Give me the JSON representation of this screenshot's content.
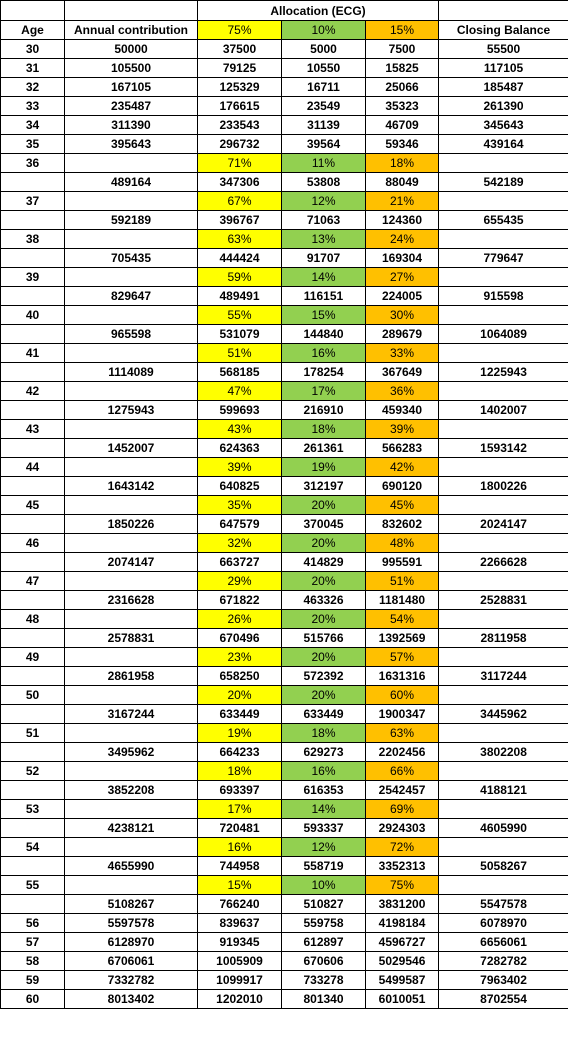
{
  "header": {
    "allocation_title": "Allocation (ECG)",
    "age": "Age",
    "annual_contribution": "Annual contribution",
    "alloc_a": "75%",
    "alloc_b": "10%",
    "alloc_c": "15%",
    "closing_balance": "Closing Balance"
  },
  "colors": {
    "alloc_a": "#ffff00",
    "alloc_b": "#92d050",
    "alloc_c": "#ffc000"
  },
  "rows": [
    {
      "kind": "data",
      "age": "30",
      "contribution": "50000",
      "a": "37500",
      "b": "5000",
      "c": "7500",
      "closing": "55500"
    },
    {
      "kind": "data",
      "age": "31",
      "contribution": "105500",
      "a": "79125",
      "b": "10550",
      "c": "15825",
      "closing": "117105"
    },
    {
      "kind": "data",
      "age": "32",
      "contribution": "167105",
      "a": "125329",
      "b": "16711",
      "c": "25066",
      "closing": "185487"
    },
    {
      "kind": "data",
      "age": "33",
      "contribution": "235487",
      "a": "176615",
      "b": "23549",
      "c": "35323",
      "closing": "261390"
    },
    {
      "kind": "data",
      "age": "34",
      "contribution": "311390",
      "a": "233543",
      "b": "31139",
      "c": "46709",
      "closing": "345643"
    },
    {
      "kind": "data",
      "age": "35",
      "contribution": "395643",
      "a": "296732",
      "b": "39564",
      "c": "59346",
      "closing": "439164"
    },
    {
      "kind": "pct",
      "age": "36",
      "a": "71%",
      "b": "11%",
      "c": "18%"
    },
    {
      "kind": "data",
      "age": "",
      "contribution": "489164",
      "a": "347306",
      "b": "53808",
      "c": "88049",
      "closing": "542189"
    },
    {
      "kind": "pct",
      "age": "37",
      "a": "67%",
      "b": "12%",
      "c": "21%"
    },
    {
      "kind": "data",
      "age": "",
      "contribution": "592189",
      "a": "396767",
      "b": "71063",
      "c": "124360",
      "closing": "655435"
    },
    {
      "kind": "pct",
      "age": "38",
      "a": "63%",
      "b": "13%",
      "c": "24%"
    },
    {
      "kind": "data",
      "age": "",
      "contribution": "705435",
      "a": "444424",
      "b": "91707",
      "c": "169304",
      "closing": "779647"
    },
    {
      "kind": "pct",
      "age": "39",
      "a": "59%",
      "b": "14%",
      "c": "27%"
    },
    {
      "kind": "data",
      "age": "",
      "contribution": "829647",
      "a": "489491",
      "b": "116151",
      "c": "224005",
      "closing": "915598"
    },
    {
      "kind": "pct",
      "age": "40",
      "a": "55%",
      "b": "15%",
      "c": "30%"
    },
    {
      "kind": "data",
      "age": "",
      "contribution": "965598",
      "a": "531079",
      "b": "144840",
      "c": "289679",
      "closing": "1064089"
    },
    {
      "kind": "pct",
      "age": "41",
      "a": "51%",
      "b": "16%",
      "c": "33%"
    },
    {
      "kind": "data",
      "age": "",
      "contribution": "1114089",
      "a": "568185",
      "b": "178254",
      "c": "367649",
      "closing": "1225943"
    },
    {
      "kind": "pct",
      "age": "42",
      "a": "47%",
      "b": "17%",
      "c": "36%"
    },
    {
      "kind": "data",
      "age": "",
      "contribution": "1275943",
      "a": "599693",
      "b": "216910",
      "c": "459340",
      "closing": "1402007"
    },
    {
      "kind": "pct",
      "age": "43",
      "a": "43%",
      "b": "18%",
      "c": "39%"
    },
    {
      "kind": "data",
      "age": "",
      "contribution": "1452007",
      "a": "624363",
      "b": "261361",
      "c": "566283",
      "closing": "1593142"
    },
    {
      "kind": "pct",
      "age": "44",
      "a": "39%",
      "b": "19%",
      "c": "42%"
    },
    {
      "kind": "data",
      "age": "",
      "contribution": "1643142",
      "a": "640825",
      "b": "312197",
      "c": "690120",
      "closing": "1800226"
    },
    {
      "kind": "pct",
      "age": "45",
      "a": "35%",
      "b": "20%",
      "c": "45%"
    },
    {
      "kind": "data",
      "age": "",
      "contribution": "1850226",
      "a": "647579",
      "b": "370045",
      "c": "832602",
      "closing": "2024147"
    },
    {
      "kind": "pct",
      "age": "46",
      "a": "32%",
      "b": "20%",
      "c": "48%"
    },
    {
      "kind": "data",
      "age": "",
      "contribution": "2074147",
      "a": "663727",
      "b": "414829",
      "c": "995591",
      "closing": "2266628"
    },
    {
      "kind": "pct",
      "age": "47",
      "a": "29%",
      "b": "20%",
      "c": "51%"
    },
    {
      "kind": "data",
      "age": "",
      "contribution": "2316628",
      "a": "671822",
      "b": "463326",
      "c": "1181480",
      "closing": "2528831"
    },
    {
      "kind": "pct",
      "age": "48",
      "a": "26%",
      "b": "20%",
      "c": "54%"
    },
    {
      "kind": "data",
      "age": "",
      "contribution": "2578831",
      "a": "670496",
      "b": "515766",
      "c": "1392569",
      "closing": "2811958"
    },
    {
      "kind": "pct",
      "age": "49",
      "a": "23%",
      "b": "20%",
      "c": "57%"
    },
    {
      "kind": "data",
      "age": "",
      "contribution": "2861958",
      "a": "658250",
      "b": "572392",
      "c": "1631316",
      "closing": "3117244"
    },
    {
      "kind": "pct",
      "age": "50",
      "a": "20%",
      "b": "20%",
      "c": "60%"
    },
    {
      "kind": "data",
      "age": "",
      "contribution": "3167244",
      "a": "633449",
      "b": "633449",
      "c": "1900347",
      "closing": "3445962"
    },
    {
      "kind": "pct",
      "age": "51",
      "a": "19%",
      "b": "18%",
      "c": "63%"
    },
    {
      "kind": "data",
      "age": "",
      "contribution": "3495962",
      "a": "664233",
      "b": "629273",
      "c": "2202456",
      "closing": "3802208"
    },
    {
      "kind": "pct",
      "age": "52",
      "a": "18%",
      "b": "16%",
      "c": "66%"
    },
    {
      "kind": "data",
      "age": "",
      "contribution": "3852208",
      "a": "693397",
      "b": "616353",
      "c": "2542457",
      "closing": "4188121"
    },
    {
      "kind": "pct",
      "age": "53",
      "a": "17%",
      "b": "14%",
      "c": "69%"
    },
    {
      "kind": "data",
      "age": "",
      "contribution": "4238121",
      "a": "720481",
      "b": "593337",
      "c": "2924303",
      "closing": "4605990"
    },
    {
      "kind": "pct",
      "age": "54",
      "a": "16%",
      "b": "12%",
      "c": "72%"
    },
    {
      "kind": "data",
      "age": "",
      "contribution": "4655990",
      "a": "744958",
      "b": "558719",
      "c": "3352313",
      "closing": "5058267"
    },
    {
      "kind": "pct",
      "age": "55",
      "a": "15%",
      "b": "10%",
      "c": "75%"
    },
    {
      "kind": "data",
      "age": "",
      "contribution": "5108267",
      "a": "766240",
      "b": "510827",
      "c": "3831200",
      "closing": "5547578"
    },
    {
      "kind": "data",
      "age": "56",
      "contribution": "5597578",
      "a": "839637",
      "b": "559758",
      "c": "4198184",
      "closing": "6078970"
    },
    {
      "kind": "data",
      "age": "57",
      "contribution": "6128970",
      "a": "919345",
      "b": "612897",
      "c": "4596727",
      "closing": "6656061"
    },
    {
      "kind": "data",
      "age": "58",
      "contribution": "6706061",
      "a": "1005909",
      "b": "670606",
      "c": "5029546",
      "closing": "7282782"
    },
    {
      "kind": "data",
      "age": "59",
      "contribution": "7332782",
      "a": "1099917",
      "b": "733278",
      "c": "5499587",
      "closing": "7963402"
    },
    {
      "kind": "data",
      "age": "60",
      "contribution": "8013402",
      "a": "1202010",
      "b": "801340",
      "c": "6010051",
      "closing": "8702554"
    }
  ]
}
